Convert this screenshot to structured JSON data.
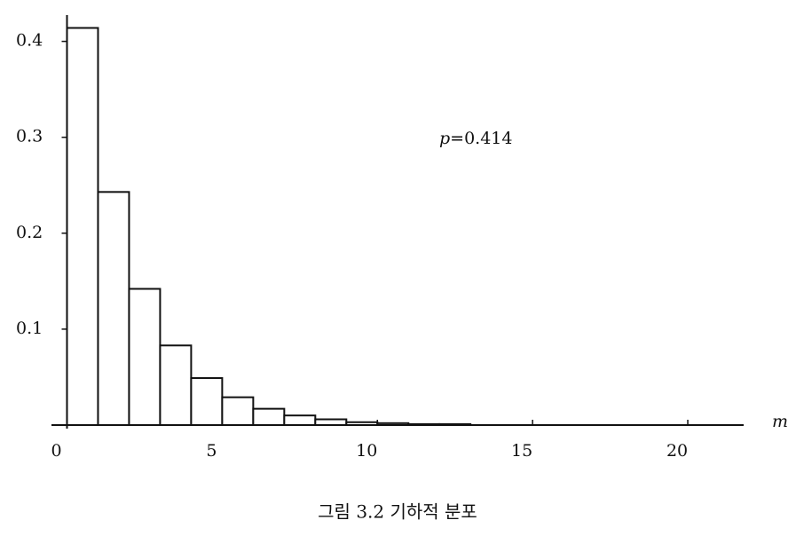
{
  "chart_data": {
    "type": "histogram",
    "bins": [
      0,
      1,
      2,
      3,
      4,
      5,
      6,
      7,
      8,
      9,
      10,
      11,
      12,
      13,
      14,
      15,
      16,
      17,
      18,
      19,
      20
    ],
    "values": [
      0.414,
      0.243,
      0.142,
      0.083,
      0.049,
      0.029,
      0.017,
      0.01,
      0.006,
      0.003,
      0.002,
      0.001,
      0.001,
      0,
      0,
      0,
      0,
      0,
      0,
      0
    ],
    "color": "#ffffff",
    "xlim": [
      -0.5,
      21.8
    ],
    "ylim": [
      0,
      0.42
    ],
    "xticks": [
      0,
      5,
      10,
      15,
      20
    ],
    "yticks": [
      0.1,
      0.2,
      0.3,
      0.4
    ],
    "x_label": "m",
    "annotation": {
      "symbol": "p",
      "text": "=0.414"
    },
    "caption": "그림 3.2 기하적 분포"
  }
}
